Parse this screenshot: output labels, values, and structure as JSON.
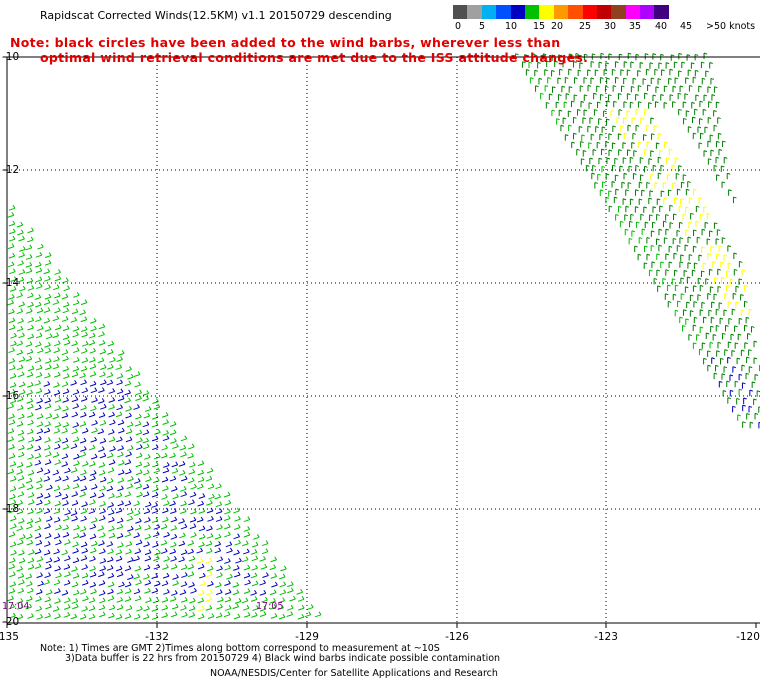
{
  "title": "Rapidscat Corrected Winds(12.5KM) v1.1 20150729 descending",
  "note": {
    "line1": "Note: black circles have been added to the wind barbs, wherever less than",
    "line2": "optimal wind retrieval conditions are met due to the ISS attitude changes."
  },
  "scale": {
    "colors": [
      "#505050",
      "#a0a0a0",
      "#00b0f0",
      "#0050ff",
      "#0000c0",
      "#00c000",
      "#ffff00",
      "#ff9900",
      "#ff5000",
      "#ff0000",
      "#c00000",
      "#904020",
      "#ff00ff",
      "#b000ff",
      "#400080"
    ],
    "labels": [
      "0",
      "5",
      "10",
      "15",
      "20",
      "25",
      "30",
      "35",
      "40",
      "45",
      ">50 knots"
    ]
  },
  "map": {
    "lon_labels": [
      "-135",
      "-132",
      "-129",
      "-126",
      "-123",
      "-120"
    ],
    "lat_labels": [
      "-10",
      "-12",
      "-14",
      "-16",
      "-18",
      "-20"
    ],
    "time_labels": [
      "17:04",
      "17:05"
    ],
    "barb_colors": {
      "green": "#00c000",
      "blue": "#0000c0",
      "yellow": "#ffff00",
      "darkgreen": "#008000"
    }
  },
  "footer": {
    "line1": "Note: 1) Times are GMT 2)Times along bottom correspond to measurement at ~10S",
    "line2": "3)Data buffer is 22 hrs from 20150729 4) Black wind barbs indicate possible contamination",
    "line3": "NOAA/NESDIS/Center for Satellite Applications and Research"
  }
}
